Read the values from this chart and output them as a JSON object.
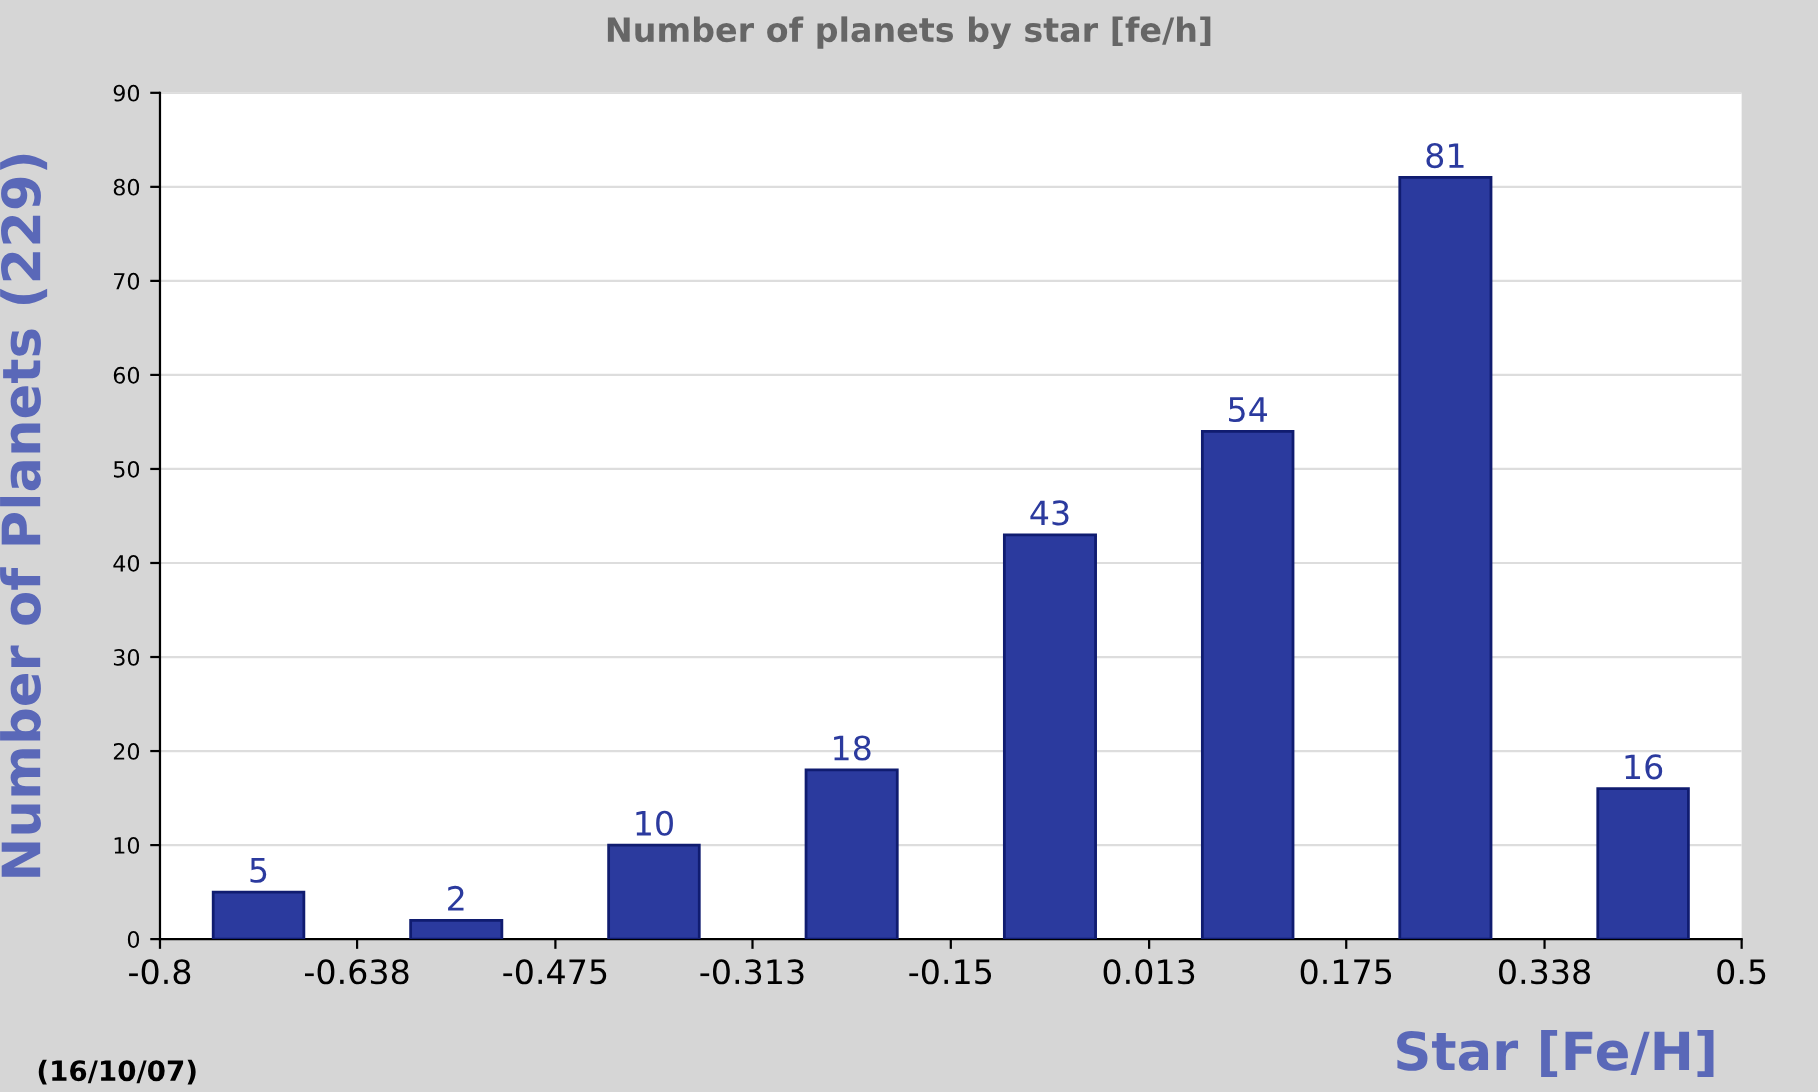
{
  "chart_data": {
    "type": "histogram",
    "title": "Number of planets by star [fe/h]",
    "xlabel": "Star [Fe/H]",
    "ylabel": "Number of Planets (229)",
    "bins": [
      -0.8,
      -0.638,
      -0.475,
      -0.313,
      -0.15,
      0.013,
      0.175,
      0.338,
      0.5
    ],
    "values": [
      5,
      2,
      10,
      18,
      43,
      54,
      81,
      16
    ],
    "color": "#2b3a9e",
    "data_labels": true,
    "xlim": [
      -0.8,
      0.5
    ],
    "xticks": [
      -0.8,
      -0.638,
      -0.475,
      -0.313,
      -0.15,
      0.013,
      0.175,
      0.338,
      0.5
    ],
    "ylim": [
      0,
      90
    ],
    "yticks": [
      0,
      10,
      20,
      30,
      40,
      50,
      60,
      70,
      80,
      90
    ],
    "grid": "y",
    "legend": false,
    "annotations": [
      "(16/10/07)"
    ]
  }
}
